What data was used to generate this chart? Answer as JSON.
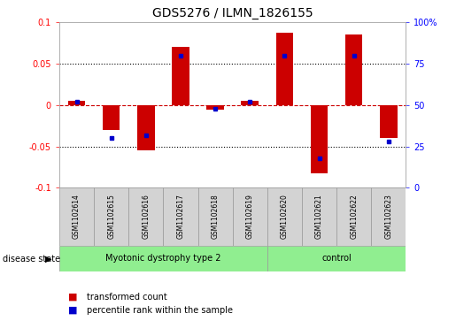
{
  "title": "GDS5276 / ILMN_1826155",
  "samples": [
    "GSM1102614",
    "GSM1102615",
    "GSM1102616",
    "GSM1102617",
    "GSM1102618",
    "GSM1102619",
    "GSM1102620",
    "GSM1102621",
    "GSM1102622",
    "GSM1102623"
  ],
  "red_values": [
    0.005,
    -0.03,
    -0.055,
    0.07,
    -0.005,
    0.005,
    0.088,
    -0.082,
    0.085,
    -0.04
  ],
  "blue_values": [
    0.52,
    0.3,
    0.32,
    0.8,
    0.48,
    0.52,
    0.8,
    0.18,
    0.8,
    0.28
  ],
  "group_labels": [
    "Myotonic dystrophy type 2",
    "control"
  ],
  "group_colors": [
    "#90EE90",
    "#90EE90"
  ],
  "group_ranges": [
    [
      0,
      6
    ],
    [
      6,
      10
    ]
  ],
  "ylim": [
    -0.1,
    0.1
  ],
  "yticks_left": [
    -0.1,
    -0.05,
    0.0,
    0.05,
    0.1
  ],
  "ytick_labels_left": [
    "-0.1",
    "-0.05",
    "0",
    "0.05",
    "0.1"
  ],
  "yticks_right": [
    0,
    25,
    50,
    75,
    100
  ],
  "ytick_labels_right": [
    "0",
    "25",
    "50",
    "75",
    "100%"
  ],
  "bar_color": "#CC0000",
  "dot_color": "#0000CC",
  "bg_color": "#ffffff",
  "grid_color": "#000000",
  "zero_line_color": "#CC0000",
  "sample_box_color": "#D3D3D3",
  "disease_state_label": "disease state",
  "legend_red": "transformed count",
  "legend_blue": "percentile rank within the sample"
}
